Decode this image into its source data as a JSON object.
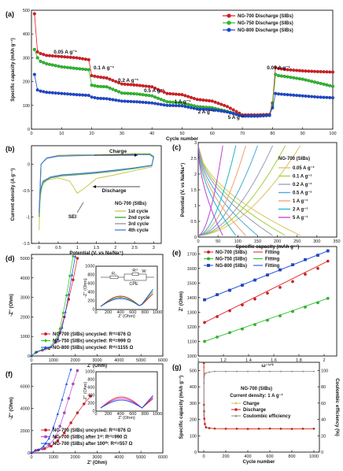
{
  "chart_data": [
    {
      "panel": "(a)",
      "type": "scatter",
      "xlabel": "Cycle number",
      "ylabel": "Specific capacity (mAh g⁻¹)",
      "xlim": [
        0,
        100
      ],
      "ylim": [
        0,
        500
      ],
      "xticks": [
        0,
        10,
        20,
        30,
        40,
        50,
        60,
        70,
        80,
        90,
        100
      ],
      "yticks": [
        0,
        100,
        200,
        300,
        400,
        500
      ],
      "legend_position": "top-right",
      "annotations": [
        "0.05 A g⁻¹",
        "0.1 A g⁻¹",
        "0.2 A g⁻¹",
        "0.5 A g⁻¹",
        "1 A g⁻¹",
        "2 A g⁻¹",
        "5 A g⁻¹",
        "0.05 A g⁻¹"
      ],
      "series": [
        {
          "name": "NG-700 Discharge (SIBs)",
          "color": "#e8141b",
          "x": [
            1,
            2,
            3,
            5,
            10,
            15,
            19,
            20,
            22,
            25,
            30,
            35,
            40,
            45,
            50,
            55,
            60,
            65,
            70,
            75,
            79,
            80,
            81,
            82,
            85,
            90,
            95,
            100
          ],
          "y": [
            485,
            325,
            318,
            310,
            305,
            300,
            292,
            225,
            220,
            215,
            190,
            185,
            178,
            150,
            145,
            125,
            118,
            95,
            60,
            60,
            62,
            110,
            260,
            255,
            250,
            245,
            242,
            240
          ]
        },
        {
          "name": "NG-750 Discharge (SIBs)",
          "color": "#22c322",
          "x": [
            1,
            2,
            3,
            5,
            10,
            15,
            19,
            20,
            22,
            25,
            30,
            35,
            40,
            45,
            50,
            55,
            60,
            65,
            70,
            75,
            79,
            80,
            81,
            82,
            85,
            90,
            95,
            100
          ],
          "y": [
            335,
            300,
            285,
            275,
            262,
            255,
            250,
            185,
            180,
            178,
            152,
            148,
            140,
            115,
            110,
            95,
            90,
            75,
            55,
            55,
            58,
            100,
            230,
            225,
            220,
            210,
            195,
            180
          ]
        },
        {
          "name": "NG-800 Discharge (SIBs)",
          "color": "#1646e0",
          "x": [
            1,
            2,
            3,
            5,
            10,
            15,
            19,
            20,
            22,
            25,
            30,
            35,
            40,
            45,
            50,
            55,
            60,
            65,
            70,
            75,
            79,
            80,
            81,
            82,
            85,
            90,
            95,
            100
          ],
          "y": [
            230,
            165,
            160,
            155,
            150,
            145,
            142,
            135,
            130,
            128,
            118,
            115,
            110,
            100,
            98,
            85,
            82,
            72,
            55,
            55,
            58,
            90,
            150,
            148,
            145,
            140,
            135,
            132
          ]
        }
      ]
    },
    {
      "panel": "(b)",
      "type": "line",
      "xlabel": "Potential (V. vs Na/Na⁺)",
      "ylabel": "Current density (A g⁻¹)",
      "xlim": [
        -0.2,
        3.2
      ],
      "ylim": [
        -1.5,
        0.35
      ],
      "xticks": [
        0.0,
        0.5,
        1.0,
        1.5,
        2.0,
        2.5,
        3.0
      ],
      "yticks": [
        -1.5,
        -1.0,
        -0.5,
        0.0
      ],
      "title_in_plot": "NG-700 (SIBs)",
      "annotations": [
        "Charge",
        "Discharge",
        "SEI"
      ],
      "series": [
        {
          "name": "1st cycle",
          "color": "#c8c850",
          "x": [
            0.0,
            0.02,
            0.08,
            0.2,
            0.5,
            0.8,
            1.0,
            1.2,
            1.5,
            2.0,
            2.5,
            2.95,
            3.0,
            2.9,
            2.5,
            2.0,
            1.5,
            1.0,
            0.5,
            0.2,
            0.05,
            0.0
          ],
          "y": [
            -1.25,
            -0.7,
            -0.4,
            -0.3,
            -0.26,
            -0.32,
            -0.55,
            -0.45,
            -0.27,
            -0.2,
            -0.12,
            -0.05,
            0.15,
            0.2,
            0.2,
            0.19,
            0.18,
            0.18,
            0.17,
            0.12,
            0.0,
            -1.25
          ]
        },
        {
          "name": "2nd cycle",
          "color": "#2ea82e",
          "x": [
            0.0,
            0.03,
            0.1,
            0.3,
            0.6,
            1.0,
            1.5,
            2.0,
            2.5,
            2.95,
            3.0,
            2.9,
            2.5,
            2.0,
            1.5,
            1.0,
            0.5,
            0.2,
            0.05,
            0.0
          ],
          "y": [
            -1.0,
            -0.55,
            -0.35,
            -0.26,
            -0.22,
            -0.2,
            -0.17,
            -0.13,
            -0.08,
            -0.03,
            0.14,
            0.19,
            0.19,
            0.18,
            0.17,
            0.17,
            0.16,
            0.12,
            0.0,
            -1.0
          ]
        },
        {
          "name": "3rd cycle",
          "color": "#9090a8",
          "x": [
            0.0,
            0.03,
            0.1,
            0.3,
            0.6,
            1.0,
            1.5,
            2.0,
            2.5,
            2.95,
            3.0,
            2.9,
            2.5,
            2.0,
            1.5,
            1.0,
            0.5,
            0.2,
            0.05,
            0.0
          ],
          "y": [
            -0.95,
            -0.52,
            -0.33,
            -0.25,
            -0.21,
            -0.19,
            -0.16,
            -0.12,
            -0.07,
            -0.03,
            0.13,
            0.18,
            0.19,
            0.18,
            0.17,
            0.17,
            0.16,
            0.12,
            0.0,
            -0.95
          ]
        },
        {
          "name": "4th cycle",
          "color": "#3f7fd8",
          "x": [
            0.0,
            0.03,
            0.1,
            0.3,
            0.6,
            1.0,
            1.5,
            2.0,
            2.5,
            2.95,
            3.0,
            2.9,
            2.5,
            2.0,
            1.5,
            1.0,
            0.5,
            0.2,
            0.05,
            0.0
          ],
          "y": [
            -0.92,
            -0.5,
            -0.32,
            -0.24,
            -0.2,
            -0.18,
            -0.15,
            -0.11,
            -0.07,
            -0.02,
            0.13,
            0.18,
            0.18,
            0.17,
            0.17,
            0.16,
            0.15,
            0.11,
            0.0,
            -0.92
          ]
        }
      ]
    },
    {
      "panel": "(c)",
      "type": "line",
      "xlabel": "Specific capacity (mAh g⁻¹)",
      "ylabel": "Potential (V. vs Na/Na⁺)",
      "xlim": [
        0,
        350
      ],
      "ylim": [
        0.0,
        3.0
      ],
      "xticks": [
        0,
        50,
        100,
        150,
        200,
        250,
        300,
        350
      ],
      "yticks": [
        0.0,
        0.5,
        1.0,
        1.5,
        2.0,
        2.5,
        3.0
      ],
      "title_in_plot": "NG-700 (SIBs)",
      "series": [
        {
          "name": "0.05 A g⁻¹",
          "color": "#d9c266",
          "capacity": 258
        },
        {
          "name": "0.1 A g⁻¹",
          "color": "#9ed23c",
          "capacity": 220
        },
        {
          "name": "0.2 A g⁻¹",
          "color": "#9a9ab5",
          "capacity": 188
        },
        {
          "name": "0.5 A g⁻¹",
          "color": "#48a8d8",
          "capacity": 150
        },
        {
          "name": "1 A g⁻¹",
          "color": "#f0a070",
          "capacity": 120
        },
        {
          "name": "2 A g⁻¹",
          "color": "#22b4c8",
          "capacity": 95
        },
        {
          "name": "5 A g⁻¹",
          "color": "#c040d0",
          "capacity": 62
        }
      ]
    },
    {
      "panel": "(d)",
      "type": "scatter",
      "xlabel": "Z' (Ohm)",
      "ylabel": "-Z'' (Ohm)",
      "xlim": [
        0,
        6000
      ],
      "ylim": [
        0,
        5200
      ],
      "xticks": [
        0,
        1000,
        2000,
        3000,
        4000,
        5000,
        6000
      ],
      "yticks": [
        0,
        1000,
        2000,
        3000,
        4000,
        5000
      ],
      "inset": {
        "xlabel": "Z' (Ohm)",
        "ylabel": "-Z'' (Ohm)",
        "xticks": [
          0,
          200,
          400,
          600,
          800,
          1000
        ],
        "yticks": [
          0,
          200,
          400,
          600,
          800,
          1000
        ],
        "circuit_labels": [
          "Rₛ",
          "Rᶜᵗ",
          "W",
          "CPE"
        ]
      },
      "series": [
        {
          "name": "NG-700 (SIBs) uncycled: Rᶜᵗ=876 Ω",
          "color": "#e8141b",
          "x": [
            0,
            200,
            500,
            800,
            1100,
            1300,
            1500,
            1700,
            1900,
            2100
          ],
          "y": [
            0,
            180,
            300,
            380,
            700,
            1200,
            2000,
            2900,
            3900,
            5000
          ]
        },
        {
          "name": "NG-750 (SIBs) uncycled: Rᶜᵗ=999 Ω",
          "color": "#22c322",
          "x": [
            0,
            200,
            500,
            800,
            1100,
            1300,
            1450,
            1600,
            1750,
            1900
          ],
          "y": [
            0,
            200,
            330,
            420,
            800,
            1400,
            2200,
            3100,
            4100,
            5100
          ]
        },
        {
          "name": "NG-800 (SIBs) uncycled: Rᶜᵗ=1155 Ω",
          "color": "#1646e0",
          "x": [
            0,
            250,
            600,
            900,
            1200,
            1400,
            1550,
            1700,
            1850,
            2000
          ],
          "y": [
            0,
            220,
            360,
            460,
            850,
            1450,
            2250,
            3150,
            4150,
            5100
          ]
        }
      ]
    },
    {
      "panel": "(e)",
      "type": "scatter",
      "xlabel": "ω⁻¹ᐟ²",
      "ylabel": "Z' (Ohm)",
      "xlim": [
        1.0,
        2.1
      ],
      "ylim": [
        1000,
        1750
      ],
      "xticks": [
        1.0,
        1.2,
        1.4,
        1.6,
        1.8,
        2.0
      ],
      "yticks": [
        1000,
        1100,
        1200,
        1300,
        1400,
        1500,
        1600,
        1700
      ],
      "series": [
        {
          "name": "NG-700 (SIBs)",
          "color": "#e8141b",
          "fit_label": "Fitting",
          "x": [
            1.05,
            1.15,
            1.25,
            1.35,
            1.45,
            1.55,
            1.65,
            1.75,
            1.85,
            1.95,
            2.03
          ],
          "y": [
            1230,
            1270,
            1310,
            1350,
            1390,
            1430,
            1470,
            1510,
            1560,
            1600,
            1650
          ]
        },
        {
          "name": "NG-750 (SIBs)",
          "color": "#22c322",
          "fit_label": "Fitting",
          "x": [
            1.05,
            1.15,
            1.25,
            1.35,
            1.45,
            1.55,
            1.65,
            1.75,
            1.85,
            1.95,
            2.03
          ],
          "y": [
            1100,
            1130,
            1160,
            1185,
            1215,
            1245,
            1275,
            1305,
            1335,
            1365,
            1395
          ]
        },
        {
          "name": "NG-800 (SIBs)",
          "color": "#1646e0",
          "fit_label": "Fitting",
          "x": [
            1.05,
            1.15,
            1.25,
            1.35,
            1.45,
            1.55,
            1.65,
            1.75,
            1.85,
            1.95,
            2.03
          ],
          "y": [
            1385,
            1420,
            1450,
            1485,
            1520,
            1555,
            1590,
            1625,
            1660,
            1690,
            1720
          ]
        }
      ]
    },
    {
      "panel": "(f)",
      "type": "scatter",
      "xlabel": "Z' (Ohm)",
      "ylabel": "-Z'' (Ohm)",
      "xlim": [
        0,
        6000
      ],
      "ylim": [
        0,
        8000
      ],
      "xticks": [
        0,
        1000,
        2000,
        3000,
        4000,
        5000,
        6000
      ],
      "yticks": [
        0,
        2000,
        4000,
        6000
      ],
      "inset": {
        "xlabel": "Z' (Ohm)",
        "ylabel": "-Z'' (Ohm)",
        "xticks": [
          0,
          200,
          400,
          600,
          800,
          1000
        ],
        "yticks": [
          0,
          200,
          400,
          600,
          800,
          1000
        ]
      },
      "series": [
        {
          "name": "NG-700 (SIBs) uncycled: Rᶜᵗ=876 Ω",
          "color": "#e8141b",
          "x": [
            0,
            300,
            600,
            900,
            1200,
            1500,
            1800,
            2100,
            2400,
            2700
          ],
          "y": [
            0,
            250,
            380,
            600,
            1100,
            1800,
            2700,
            3600,
            4400,
            5100
          ]
        },
        {
          "name": "NG-700 (SIBs) after 1ˢᵗ: Rᶜᵗ=990 Ω",
          "color": "#c040d0",
          "x": [
            0,
            200,
            500,
            800,
            1100,
            1300,
            1500,
            1700,
            1900,
            2100
          ],
          "y": [
            0,
            220,
            360,
            700,
            1400,
            2400,
            3600,
            4900,
            6200,
            7400
          ]
        },
        {
          "name": "NG-700 (SIBs) after 100ᵗʰ: Rᶜᵗ=557 Ω",
          "color": "#1646e0",
          "x": [
            0,
            150,
            350,
            550,
            800,
            1000,
            1200,
            1400,
            1600,
            1800
          ],
          "y": [
            0,
            200,
            300,
            600,
            1300,
            2300,
            3500,
            4800,
            6200,
            7500
          ]
        }
      ]
    },
    {
      "panel": "(g)",
      "type": "scatter",
      "xlabel": "Cycle number",
      "ylabel": "Specific capacity (mAh g⁻¹)",
      "ylabel_right": "Coulombic efficiency (%)",
      "xlim": [
        -50,
        1050
      ],
      "ylim": [
        0,
        550
      ],
      "ylim_right": [
        0,
        110
      ],
      "xticks": [
        0,
        200,
        400,
        600,
        800,
        1000
      ],
      "yticks": [
        0,
        100,
        200,
        300,
        400,
        500
      ],
      "yticks_right": [
        0,
        20,
        40,
        60,
        80,
        100
      ],
      "title_in_plot": "NG-700 (SIBs)",
      "annotations": [
        "Current density: 1 A g⁻¹"
      ],
      "series": [
        {
          "name": "Charge",
          "color": "#d9c266",
          "x": [
            1,
            2,
            3,
            5,
            10,
            20,
            50,
            100,
            200,
            300,
            400,
            500,
            600,
            700,
            800,
            900,
            1000
          ],
          "y": [
            520,
            285,
            245,
            200,
            170,
            150,
            145,
            143,
            142,
            142,
            141,
            142,
            143,
            142,
            141,
            142,
            142
          ]
        },
        {
          "name": "Discharge",
          "color": "#e8141b",
          "x": [
            1,
            2,
            3,
            5,
            10,
            20,
            50,
            100,
            200,
            300,
            400,
            500,
            600,
            700,
            800,
            900,
            1000
          ],
          "y": [
            545,
            290,
            250,
            205,
            172,
            152,
            147,
            144,
            143,
            143,
            142,
            143,
            144,
            143,
            142,
            143,
            143
          ]
        },
        {
          "name": "Coulombic efficiency",
          "color": "#8a8a9a",
          "axis": "right",
          "x": [
            1,
            2,
            5,
            10,
            20,
            50,
            100,
            200,
            300,
            400,
            500,
            600,
            700,
            800,
            900,
            1000
          ],
          "y": [
            45,
            85,
            94,
            96,
            97,
            98,
            99,
            99,
            99,
            99,
            99,
            99,
            99,
            99,
            99,
            99
          ]
        }
      ]
    }
  ]
}
